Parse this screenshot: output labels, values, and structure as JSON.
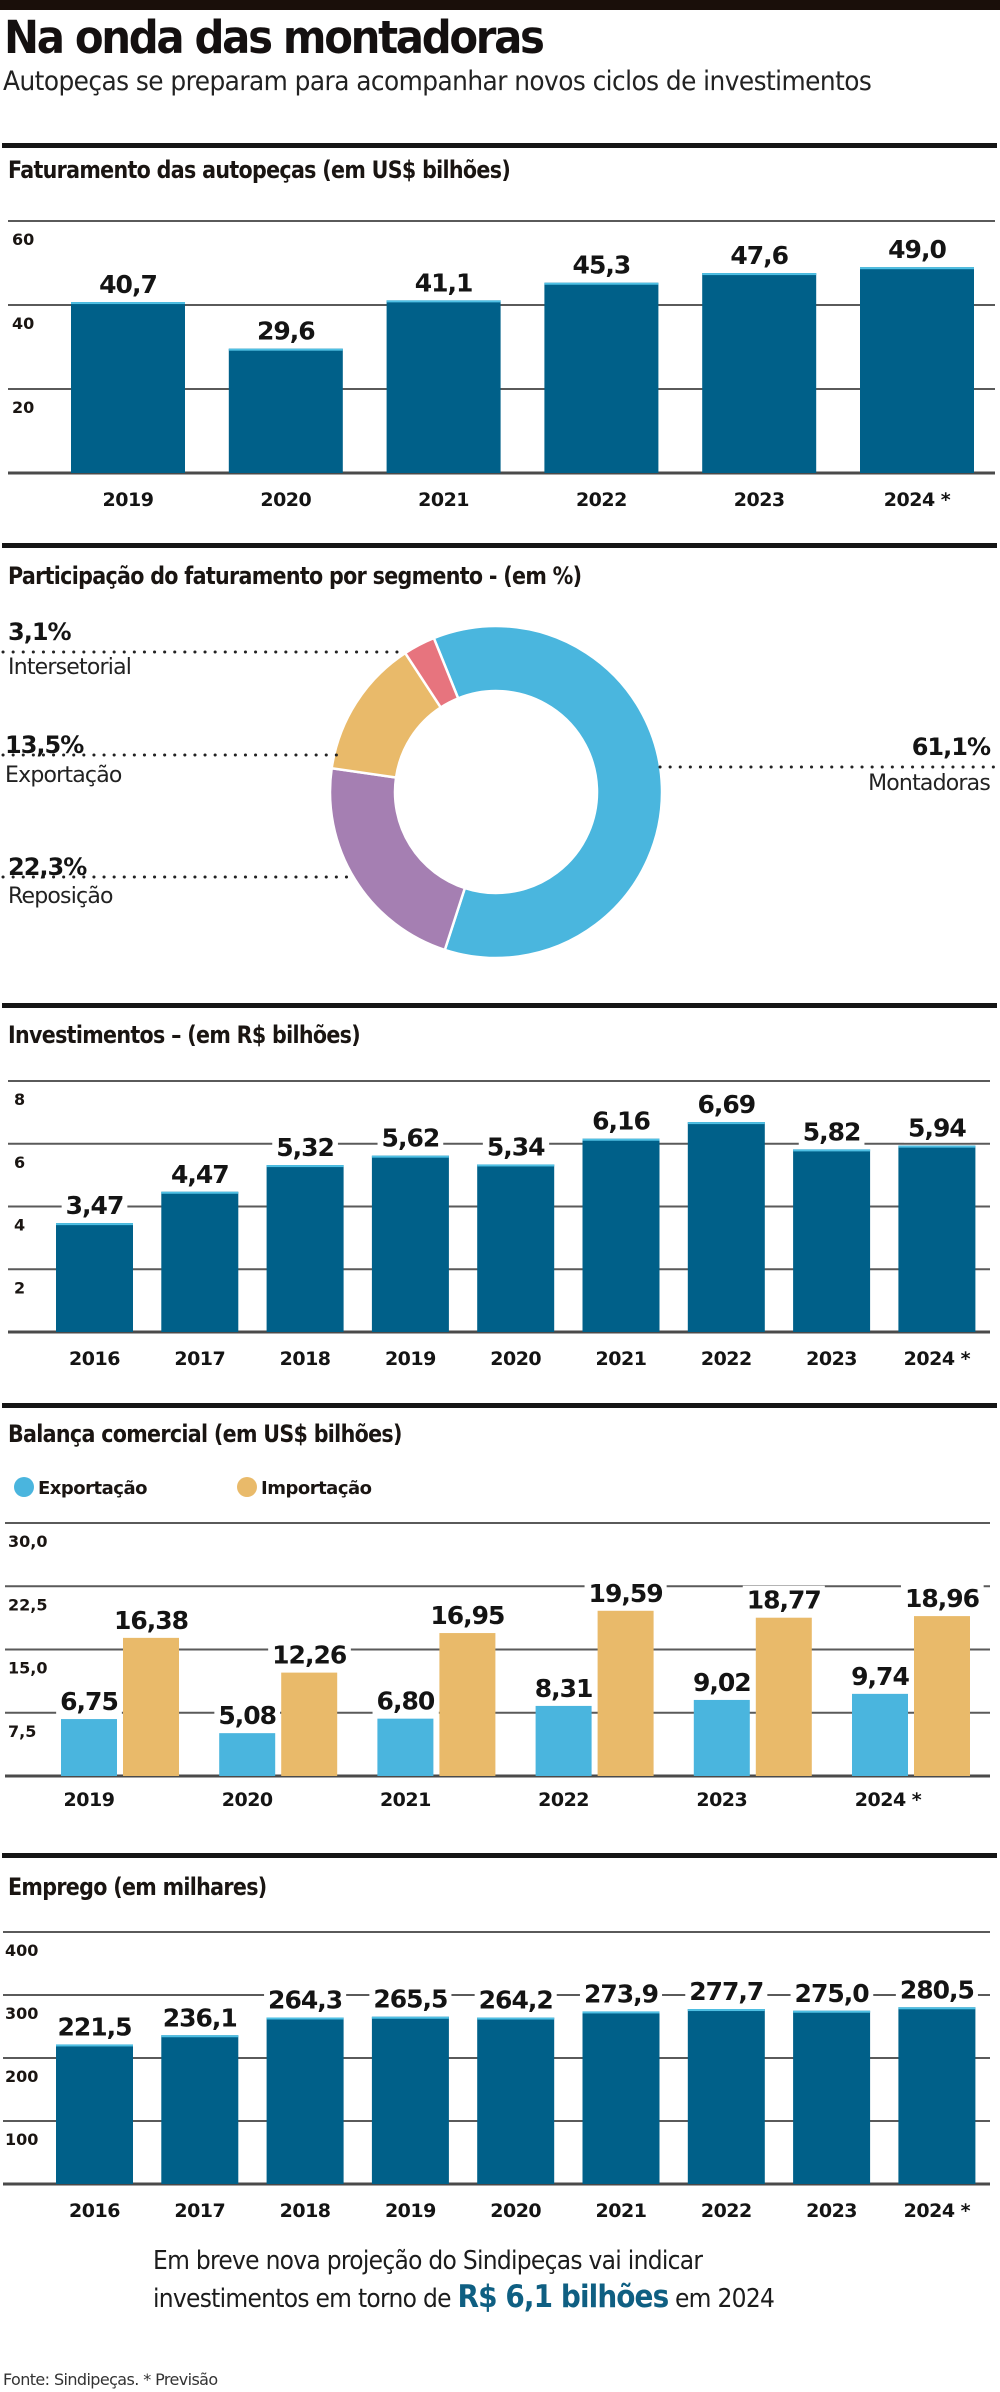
{
  "header": {
    "title": "Na onda das montadoras",
    "subtitle": "Autopeças se preparam para acompanhar novos ciclos de investimentos"
  },
  "colors": {
    "bar_blue": "#006089",
    "bar_top": "#4fc0e4",
    "export": "#4ab5de",
    "import": "#e9ba6a",
    "montadoras": "#4ab6de",
    "reposicao": "#a57fb2",
    "exportacao": "#e9ba6a",
    "intersetorial": "#e7747e",
    "highlight": "#0f5f82"
  },
  "chart_data": [
    {
      "id": "faturamento",
      "type": "bar",
      "title": "Faturamento das autopeças (em US$ bilhões)",
      "categories": [
        "2019",
        "2020",
        "2021",
        "2022",
        "2023",
        "2024 *"
      ],
      "values": [
        40.7,
        29.6,
        41.1,
        45.3,
        47.6,
        49.0
      ],
      "value_labels": [
        "40,7",
        "29,6",
        "41,1",
        "45,3",
        "47,6",
        "49,0"
      ],
      "yticks": [
        60,
        40,
        20
      ],
      "ytick_labels": [
        "60",
        "40",
        "20"
      ],
      "ylim": [
        0,
        60
      ],
      "grid": true,
      "xlabel": "",
      "ylabel": ""
    },
    {
      "id": "participacao",
      "type": "pie",
      "title": "Participação do faturamento por segmento - (em %)",
      "donut": true,
      "slices": [
        {
          "name": "Montadoras",
          "value": 61.1,
          "label": "61,1%",
          "color": "#4ab6de",
          "label_side": "right"
        },
        {
          "name": "Reposição",
          "value": 22.3,
          "label": "22,3%",
          "color": "#a57fb2",
          "label_side": "left"
        },
        {
          "name": "Exportação",
          "value": 13.5,
          "label": "13,5%",
          "color": "#e9ba6a",
          "label_side": "left"
        },
        {
          "name": "Intersetorial",
          "value": 3.1,
          "label": "3,1%",
          "color": "#e7747e",
          "label_side": "left"
        }
      ]
    },
    {
      "id": "investimentos",
      "type": "bar",
      "title": "Investimentos – (em R$ bilhões)",
      "categories": [
        "2016",
        "2017",
        "2018",
        "2019",
        "2020",
        "2021",
        "2022",
        "2023",
        "2024 *"
      ],
      "values": [
        3.47,
        4.47,
        5.32,
        5.62,
        5.34,
        6.16,
        6.69,
        5.82,
        5.94
      ],
      "value_labels": [
        "3,47",
        "4,47",
        "5,32",
        "5,62",
        "5,34",
        "6,16",
        "6,69",
        "5,82",
        "5,94"
      ],
      "yticks": [
        8,
        6,
        4,
        2
      ],
      "ytick_labels": [
        "8",
        "6",
        "4",
        "2"
      ],
      "ylim": [
        0,
        8
      ],
      "grid": true,
      "xlabel": "",
      "ylabel": ""
    },
    {
      "id": "balanca",
      "type": "bar",
      "title": "Balança comercial (em US$ bilhões)",
      "categories": [
        "2019",
        "2020",
        "2021",
        "2022",
        "2023",
        "2024 *"
      ],
      "series": [
        {
          "name": "Exportação",
          "color": "#4ab5de",
          "values": [
            6.75,
            5.08,
            6.8,
            8.31,
            9.02,
            9.74
          ],
          "value_labels": [
            "6,75",
            "5,08",
            "6,80",
            "8,31",
            "9,02",
            "9,74"
          ]
        },
        {
          "name": "Importação",
          "color": "#e9ba6a",
          "values": [
            16.38,
            12.26,
            16.95,
            19.59,
            18.77,
            18.96
          ],
          "value_labels": [
            "16,38",
            "12,26",
            "16,95",
            "19,59",
            "18,77",
            "18,96"
          ]
        }
      ],
      "legend": "top-left",
      "yticks": [
        30.0,
        22.5,
        15.0,
        7.5
      ],
      "ytick_labels": [
        "30,0",
        "22,5",
        "15,0",
        "7,5"
      ],
      "ylim": [
        0,
        30
      ],
      "grid": true,
      "xlabel": "",
      "ylabel": ""
    },
    {
      "id": "emprego",
      "type": "bar",
      "title": "Emprego (em milhares)",
      "categories": [
        "2016",
        "2017",
        "2018",
        "2019",
        "2020",
        "2021",
        "2022",
        "2023",
        "2024 *"
      ],
      "values": [
        221.5,
        236.1,
        264.3,
        265.5,
        264.2,
        273.9,
        277.7,
        275.0,
        280.5
      ],
      "value_labels": [
        "221,5",
        "236,1",
        "264,3",
        "265,5",
        "264,2",
        "273,9",
        "277,7",
        "275,0",
        "280,5"
      ],
      "yticks": [
        400,
        300,
        200,
        100
      ],
      "ytick_labels": [
        "400",
        "300",
        "200",
        "100"
      ],
      "ylim": [
        0,
        400
      ],
      "grid": true,
      "xlabel": "",
      "ylabel": ""
    }
  ],
  "note": {
    "line1": "Em breve nova projeção do Sindipeças vai indicar",
    "line2_before": "investimentos em torno de ",
    "line2_highlight": "R$ 6,1 bilhões",
    "line2_after": " em 2024"
  },
  "source": "Fonte: Sindipeças. * Previsão"
}
